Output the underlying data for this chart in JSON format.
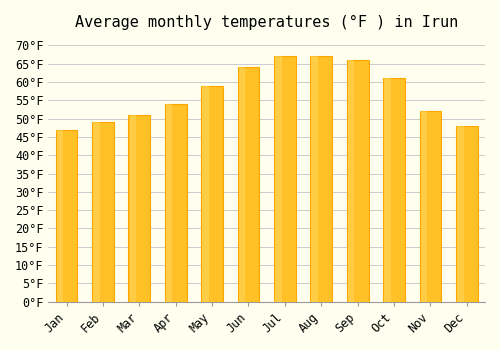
{
  "title": "Average monthly temperatures (°F ) in Irun",
  "months": [
    "Jan",
    "Feb",
    "Mar",
    "Apr",
    "May",
    "Jun",
    "Jul",
    "Aug",
    "Sep",
    "Oct",
    "Nov",
    "Dec"
  ],
  "values": [
    47,
    49,
    51,
    54,
    59,
    64,
    67,
    67,
    66,
    61,
    52,
    48
  ],
  "bar_color_face": "#FFC125",
  "bar_color_edge": "#FFA500",
  "background_color": "#FFFFF0",
  "grid_color": "#CCCCCC",
  "ylim": [
    0,
    72
  ],
  "yticks": [
    0,
    5,
    10,
    15,
    20,
    25,
    30,
    35,
    40,
    45,
    50,
    55,
    60,
    65,
    70
  ],
  "ytick_labels": [
    "0°F",
    "5°F",
    "10°F",
    "15°F",
    "20°F",
    "25°F",
    "30°F",
    "35°F",
    "40°F",
    "45°F",
    "50°F",
    "55°F",
    "60°F",
    "65°F",
    "70°F"
  ],
  "title_fontsize": 11,
  "tick_fontsize": 8.5,
  "font_family": "monospace"
}
